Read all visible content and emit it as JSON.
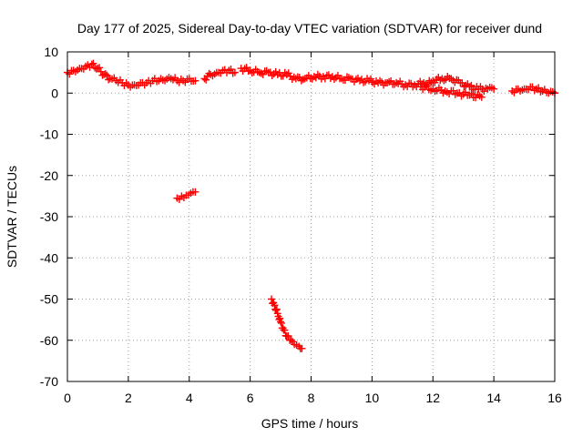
{
  "chart_data": {
    "type": "scatter",
    "title": "Day 177 of 2025, Sidereal Day-to-day VTEC variation (SDTVAR) for receiver dund",
    "xlabel": "GPS time / hours",
    "ylabel": "SDTVAR / TECUs",
    "xlim": [
      0,
      16
    ],
    "ylim": [
      -70,
      10
    ],
    "xticks": [
      0,
      2,
      4,
      6,
      8,
      10,
      12,
      14,
      16
    ],
    "yticks": [
      10,
      0,
      -10,
      -20,
      -30,
      -40,
      -50,
      -60,
      -70
    ],
    "grid": true,
    "legend": "none",
    "marker": "plus",
    "series": [
      {
        "name": "SDTVAR",
        "color": "#ff0000",
        "segments": [
          {
            "x": [
              0.0,
              0.2,
              0.4,
              0.6,
              0.8,
              1.0,
              1.2,
              1.4,
              1.6,
              1.8,
              2.0,
              2.2,
              2.4,
              2.6,
              2.8,
              3.0,
              3.2,
              3.4,
              3.6,
              3.8,
              4.0,
              4.2
            ],
            "y": [
              5.0,
              5.5,
              6.0,
              6.5,
              7.0,
              6.0,
              4.5,
              3.5,
              3.0,
              2.5,
              2.0,
              2.0,
              2.5,
              2.5,
              3.0,
              3.0,
              3.0,
              3.5,
              3.0,
              3.0,
              3.5,
              3.0
            ]
          },
          {
            "x": [
              4.5,
              4.7,
              4.9,
              5.1,
              5.3,
              5.5
            ],
            "y": [
              3.5,
              4.5,
              5.0,
              5.5,
              5.5,
              5.0
            ]
          },
          {
            "x": [
              5.7,
              6.0,
              6.3,
              6.6,
              6.9,
              7.2,
              7.5,
              7.8,
              8.1,
              8.4,
              8.7,
              9.0,
              9.3,
              9.6,
              9.9,
              10.2,
              10.5,
              10.8,
              11.1,
              11.4,
              11.7,
              12.0
            ],
            "y": [
              6.0,
              5.5,
              5.0,
              5.0,
              4.5,
              4.5,
              3.5,
              3.5,
              4.0,
              4.0,
              4.0,
              3.5,
              3.5,
              3.0,
              3.0,
              2.5,
              2.5,
              2.5,
              2.0,
              2.0,
              2.5,
              2.5
            ]
          },
          {
            "x": [
              12.0,
              12.3,
              12.6,
              12.9,
              13.2,
              13.5,
              13.8,
              14.0
            ],
            "y": [
              3.0,
              3.5,
              3.5,
              2.5,
              1.5,
              1.0,
              1.0,
              1.0
            ]
          },
          {
            "x": [
              11.6,
              12.0,
              12.4,
              12.8,
              13.2,
              13.6
            ],
            "y": [
              1.5,
              1.0,
              0.5,
              0.0,
              -0.5,
              -1.0
            ]
          },
          {
            "x": [
              14.6,
              14.8,
              15.0,
              15.2,
              15.4,
              15.6,
              15.8,
              16.0
            ],
            "y": [
              0.5,
              1.0,
              1.0,
              1.5,
              1.0,
              0.5,
              0.0,
              0.0
            ]
          },
          {
            "x": [
              3.6,
              3.75,
              3.9,
              4.05,
              4.2
            ],
            "y": [
              -25.5,
              -25.0,
              -24.8,
              -24.3,
              -24.0
            ]
          },
          {
            "x": [
              6.7,
              6.8,
              6.9,
              7.0,
              7.1,
              7.2,
              7.3,
              7.45,
              7.6,
              7.7
            ],
            "y": [
              -50.0,
              -51.5,
              -53.5,
              -55.5,
              -57.5,
              -59.0,
              -60.0,
              -61.0,
              -61.5,
              -62.0
            ]
          }
        ]
      }
    ]
  }
}
